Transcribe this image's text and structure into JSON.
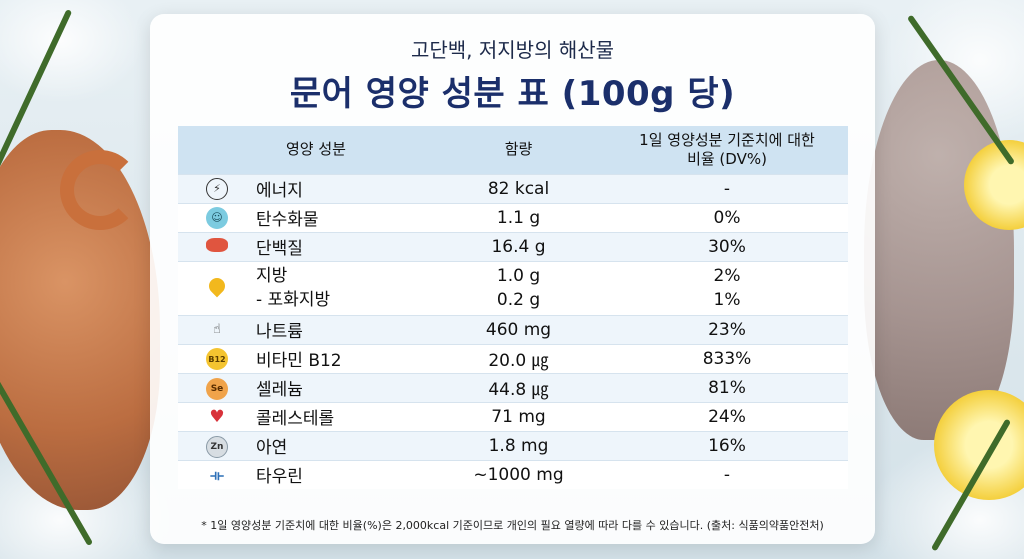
{
  "header": {
    "subtitle": "고단백, 저지방의 해산물",
    "title": "문어 영양 성분 표 (100g 당)"
  },
  "table": {
    "columns": [
      "영양 성분",
      "함량",
      "1일 영양성분 기준치에 대한\n비율 (DV%)"
    ],
    "rows": [
      {
        "icon": "lightning-icon",
        "name": "에너지",
        "amount": "82 kcal",
        "dv": "-"
      },
      {
        "icon": "carbohydrate-icon",
        "name": "탄수화물",
        "amount": "1.1 g",
        "dv": "0%"
      },
      {
        "icon": "protein-icon",
        "name": "단백질",
        "amount": "16.4 g",
        "dv": "30%"
      },
      {
        "icon": "fat-drop-icon",
        "name": "지방",
        "amount": "1.0 g",
        "dv": "2%",
        "sub_name": "- 포화지방",
        "sub_amount": "0.2 g",
        "sub_dv": "1%"
      },
      {
        "icon": "sodium-hand-icon",
        "name": "나트륨",
        "amount": "460 mg",
        "dv": "23%"
      },
      {
        "icon": "b12-icon",
        "icon_text": "B12",
        "name": "비타민 B12",
        "amount": "20.0 ㎍",
        "dv": "833%"
      },
      {
        "icon": "selenium-icon",
        "icon_text": "Se",
        "name": "셀레늄",
        "amount": "44.8 ㎍",
        "dv": "81%"
      },
      {
        "icon": "heart-pulse-icon",
        "name": "콜레스테롤",
        "amount": "71 mg",
        "dv": "24%"
      },
      {
        "icon": "zinc-icon",
        "icon_text": "Zn",
        "name": "아연",
        "amount": "1.8 mg",
        "dv": "16%"
      },
      {
        "icon": "dumbbell-icon",
        "name": "타우린",
        "amount": "~1000 mg",
        "dv": "-"
      }
    ]
  },
  "footnote": "* 1일 영양성분 기준치에 대한 비율(%)은 2,000kcal 기준이므로 개인의 필요 열량에 따라 다를 수 있습니다. (출처: 식품의약품안전처)"
}
